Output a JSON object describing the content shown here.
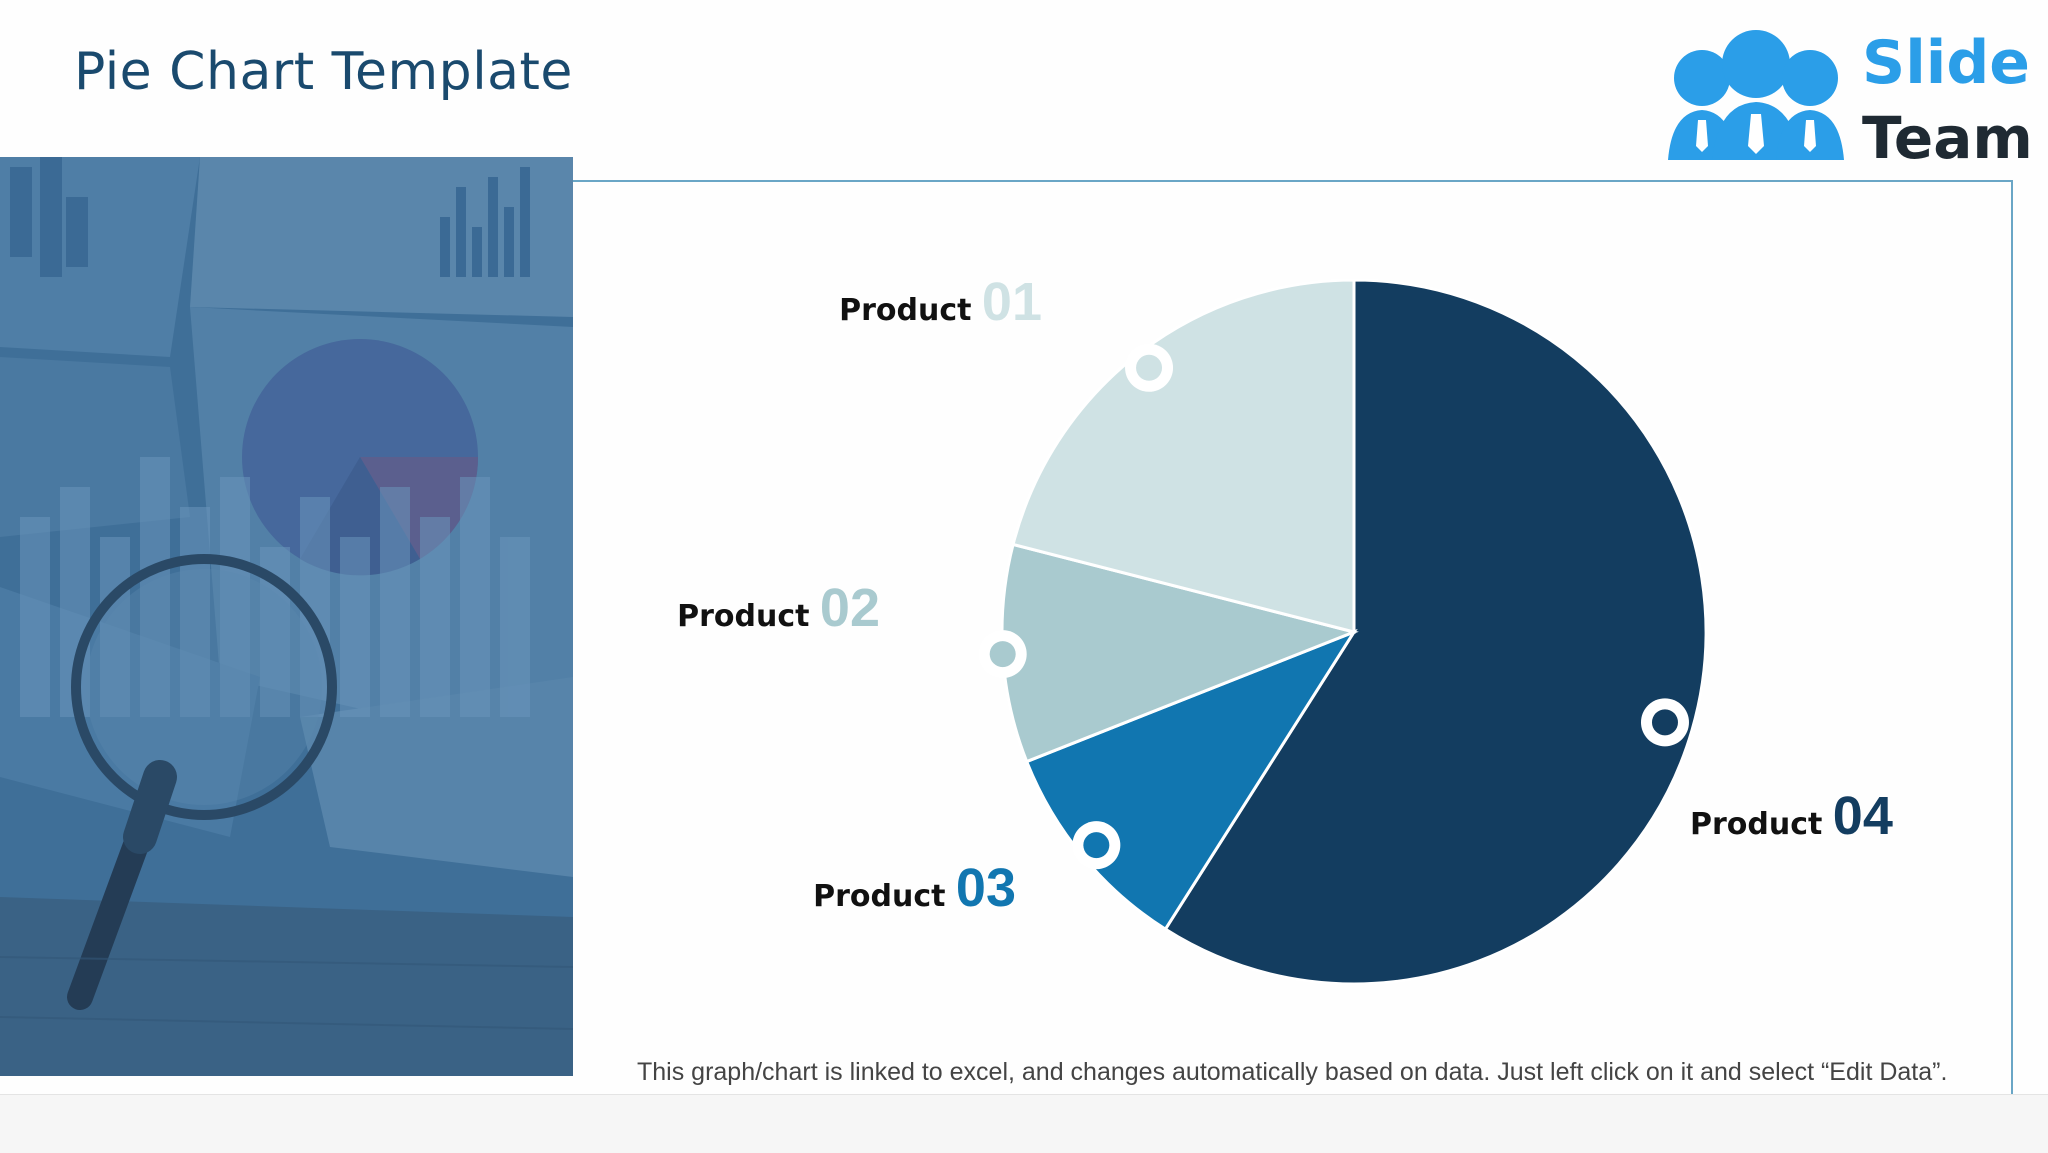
{
  "slide": {
    "title": "Pie Chart Template",
    "footnote": "This graph/chart is linked to excel, and changes automatically based on data. Just left click on it and select “Edit Data”."
  },
  "logo": {
    "line1": "Slide",
    "line2": "Team",
    "icon": "people-group-icon"
  },
  "colors": {
    "title": "#1a4a6e",
    "product01": "#cfe2e4",
    "product02": "#a9cacf",
    "product03": "#1176b0",
    "product04": "#133d60",
    "photo_overlay": "#3f6f98"
  },
  "chart_data": {
    "type": "pie",
    "title": "",
    "start_angle_deg": 0,
    "direction": "clockwise",
    "slices": [
      {
        "label_word": "Product",
        "label_num": "04",
        "value": 59,
        "color": "#133d60",
        "num_color": "#133d60"
      },
      {
        "label_word": "Product",
        "label_num": "03",
        "value": 10,
        "color": "#1176b0",
        "num_color": "#1176b0"
      },
      {
        "label_word": "Product",
        "label_num": "02",
        "value": 10,
        "color": "#a9cacf",
        "num_color": "#a9cacf"
      },
      {
        "label_word": "Product",
        "label_num": "01",
        "value": 21,
        "color": "#cfe2e4",
        "num_color": "#cfe2e4"
      }
    ]
  }
}
